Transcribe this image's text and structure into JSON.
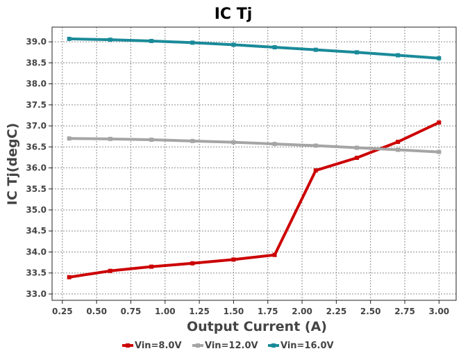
{
  "chart_data": {
    "type": "line",
    "title": "IC Tj",
    "xlabel": "Output Current (A)",
    "ylabel": "IC Tj(degC)",
    "xlim": [
      0.175,
      3.125
    ],
    "ylim": [
      32.85,
      39.35
    ],
    "x_ticks": [
      "0.25",
      "0.50",
      "0.75",
      "1.00",
      "1.25",
      "1.50",
      "1.75",
      "2.00",
      "2.25",
      "2.50",
      "2.75",
      "3.00"
    ],
    "y_ticks": [
      "33.0",
      "33.5",
      "34.0",
      "34.5",
      "35.0",
      "35.5",
      "36.0",
      "36.5",
      "37.0",
      "37.5",
      "38.0",
      "38.5",
      "39.0"
    ],
    "grid": true,
    "legend_position": "bottom",
    "x": [
      0.3,
      0.6,
      0.9,
      1.2,
      1.5,
      1.8,
      2.1,
      2.4,
      2.7,
      3.0
    ],
    "series": [
      {
        "name": "Vin=8.0V",
        "color": "#cc0000",
        "values": [
          33.4,
          33.55,
          33.65,
          33.73,
          33.82,
          33.93,
          35.94,
          36.24,
          36.62,
          37.08
        ]
      },
      {
        "name": "Vin=12.0V",
        "color": "#a5a5a5",
        "values": [
          36.7,
          36.69,
          36.67,
          36.64,
          36.61,
          36.57,
          36.53,
          36.48,
          36.43,
          36.38
        ]
      },
      {
        "name": "Vin=16.0V",
        "color": "#1a8a99",
        "values": [
          39.07,
          39.05,
          39.02,
          38.98,
          38.93,
          38.87,
          38.81,
          38.75,
          38.68,
          38.61
        ]
      }
    ]
  }
}
